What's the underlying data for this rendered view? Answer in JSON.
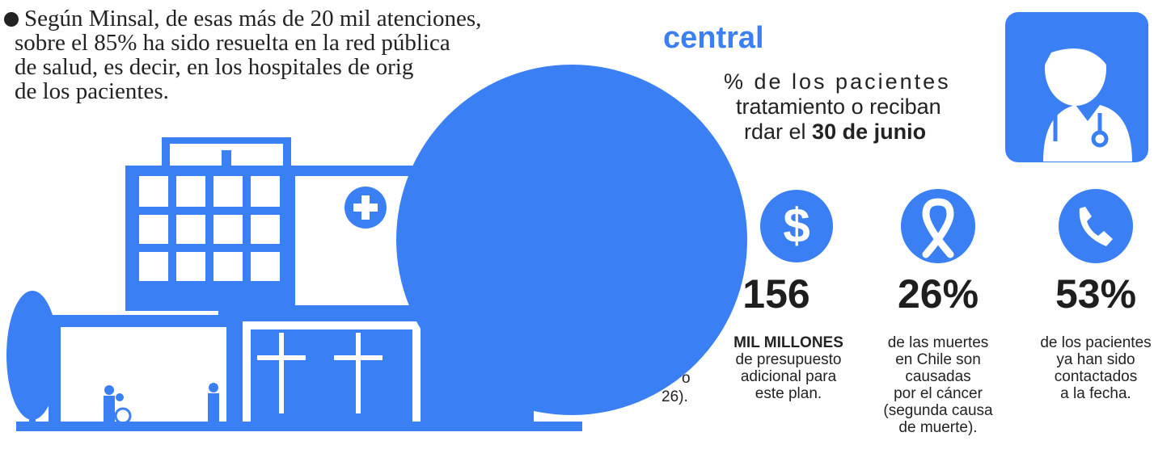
{
  "bullet_text": {
    "lines": [
      "Según Minsal, de esas más de 20 mil atenciones,",
      "sobre el 85% ha sido resuelta en la red pública",
      "de salud, es decir, en los hospitales de orig",
      "de los pacientes."
    ]
  },
  "heading": "central",
  "intro": {
    "line1": "% de los pacientes",
    "line2": "tratamiento o reciban",
    "line3_prefix": "rdar el",
    "line3_bold": "30 de junio"
  },
  "stats": [
    {
      "value": "156",
      "lines": [
        "MIL MILLONES",
        "de presupuesto",
        "adicional para",
        "este plan."
      ]
    },
    {
      "value": "26%",
      "lines": [
        "de las muertes",
        "en Chile son",
        "causadas",
        "por el cáncer",
        "(segunda causa",
        "de muerte)."
      ]
    },
    {
      "value": "53%",
      "lines": [
        "de los pacientes",
        "ya han sido",
        "contactados",
        "a la fecha."
      ]
    }
  ],
  "fragments": [
    "o",
    "26)."
  ]
}
